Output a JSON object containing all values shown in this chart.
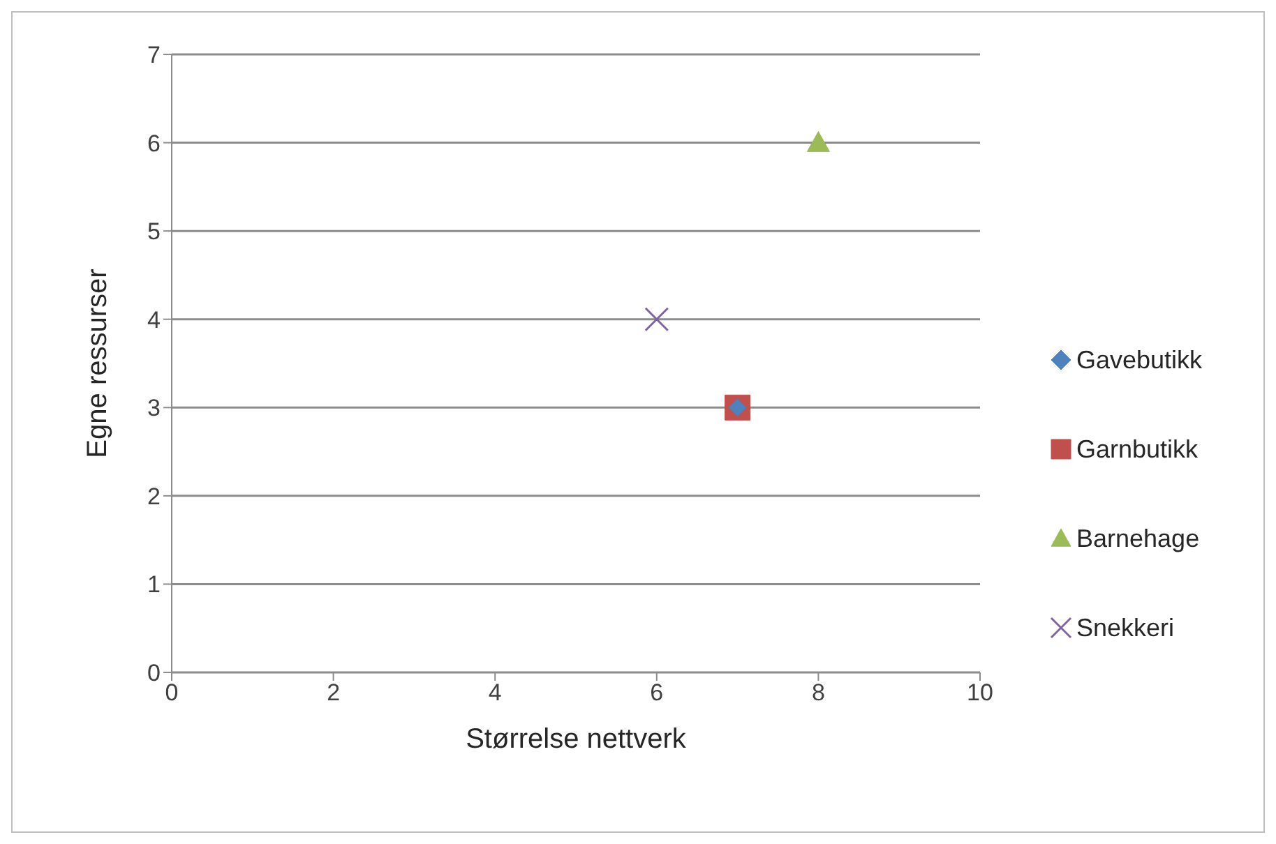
{
  "chart_data": {
    "type": "scatter",
    "xlabel": "Størrelse nettverk",
    "ylabel": "Egne ressurser",
    "xlim": [
      0,
      10
    ],
    "xticks": [
      0,
      2,
      4,
      6,
      8,
      10
    ],
    "ylim": [
      0,
      7
    ],
    "yticks": [
      0,
      1,
      2,
      3,
      4,
      5,
      6,
      7
    ],
    "grid": "y",
    "legend": "right",
    "series": [
      {
        "name": "Gavebutikk",
        "color": "#4f81bd",
        "marker": "diamond",
        "x": [
          7
        ],
        "values": [
          3
        ]
      },
      {
        "name": "Garnbutikk",
        "color": "#c0504d",
        "marker": "square",
        "x": [
          7
        ],
        "values": [
          3
        ]
      },
      {
        "name": "Barnehage",
        "color": "#9bbb59",
        "marker": "triangle",
        "x": [
          8
        ],
        "values": [
          6
        ]
      },
      {
        "name": "Snekkeri",
        "color": "#8064a2",
        "marker": "cross",
        "x": [
          6
        ],
        "values": [
          4
        ]
      }
    ]
  }
}
